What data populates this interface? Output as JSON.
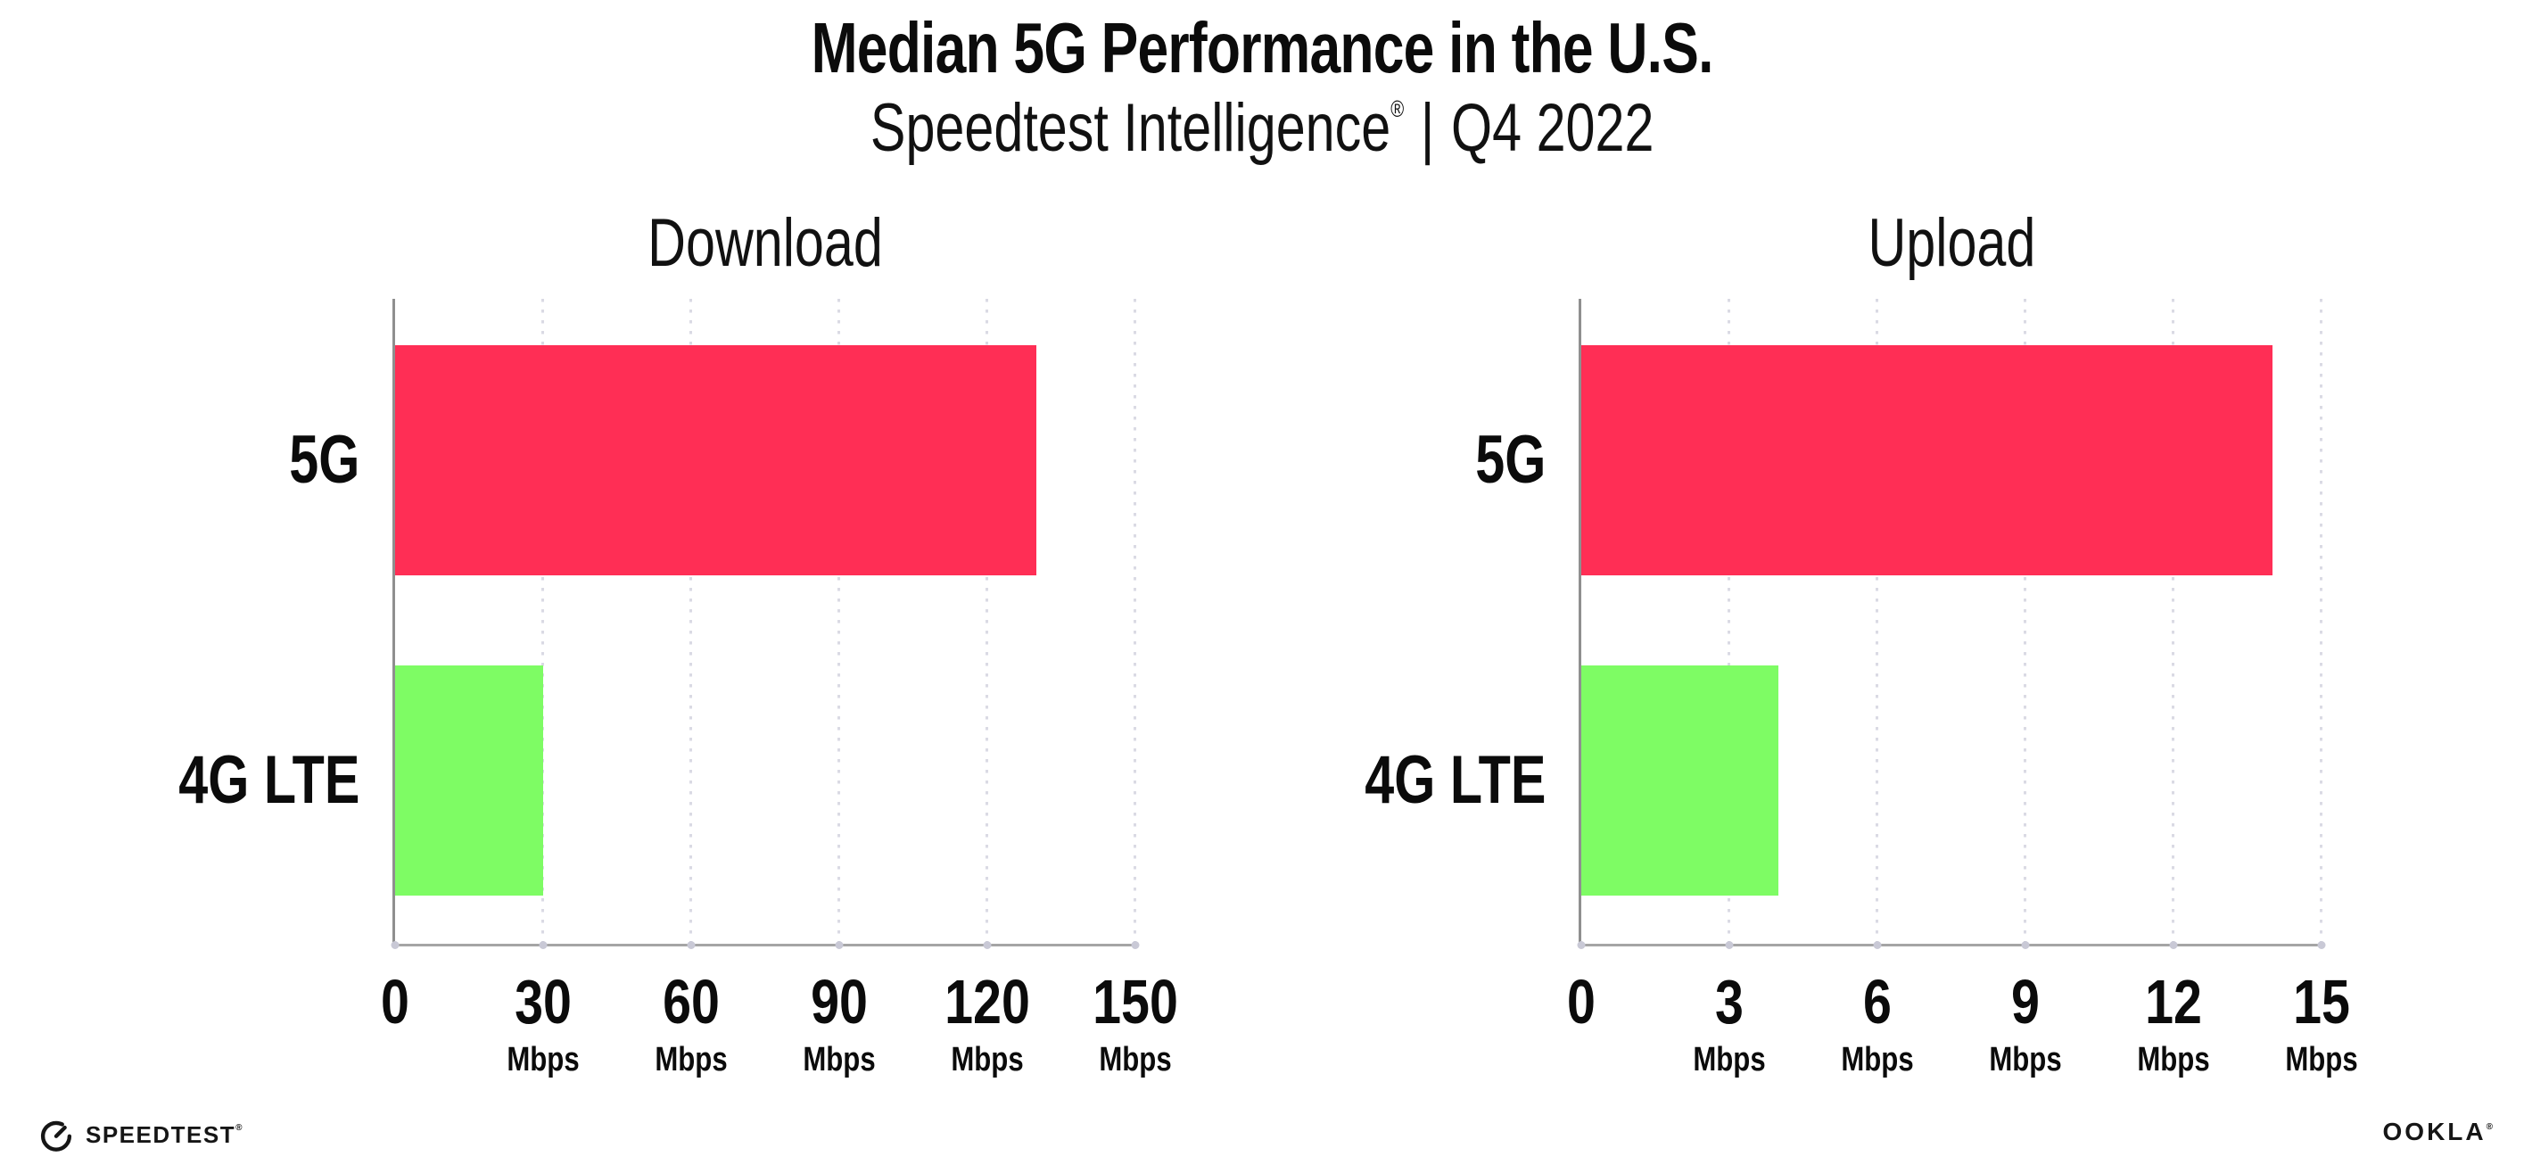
{
  "header": {
    "title": "Median 5G Performance in the U.S.",
    "subtitle_brand": "Speedtest Intelligence",
    "subtitle_registered": "®",
    "subtitle_divider": "|",
    "subtitle_period": "Q4 2022"
  },
  "chart_data": [
    {
      "type": "bar",
      "orientation": "horizontal",
      "title": "Download",
      "categories": [
        "5G",
        "4G LTE"
      ],
      "values": [
        130,
        30
      ],
      "unit": "Mbps",
      "xlim": [
        0,
        150
      ],
      "xticks": [
        0,
        30,
        60,
        90,
        120,
        150
      ],
      "xtick_unit": "Mbps",
      "bar_colors": [
        "#FF2E55",
        "#7EFC64"
      ],
      "grid": "vertical-dotted",
      "legend": "none"
    },
    {
      "type": "bar",
      "orientation": "horizontal",
      "title": "Upload",
      "categories": [
        "5G",
        "4G LTE"
      ],
      "values": [
        14,
        4
      ],
      "unit": "Mbps",
      "xlim": [
        0,
        15
      ],
      "xticks": [
        0,
        3,
        6,
        9,
        12,
        15
      ],
      "xtick_unit": "Mbps",
      "bar_colors": [
        "#FF2E55",
        "#7EFC64"
      ],
      "grid": "vertical-dotted",
      "legend": "none"
    }
  ],
  "colors": {
    "bar_5g": "#FF2E55",
    "bar_4g_lte": "#7EFC64",
    "axis_line": "#9b9b9b",
    "gridline": "#dadae4",
    "text": "#0b0b0b",
    "background": "#ffffff"
  },
  "footer": {
    "speedtest_wordmark": "SPEEDTEST",
    "speedtest_mark": "®",
    "ookla_wordmark": "OOKLA",
    "ookla_mark": "®"
  }
}
